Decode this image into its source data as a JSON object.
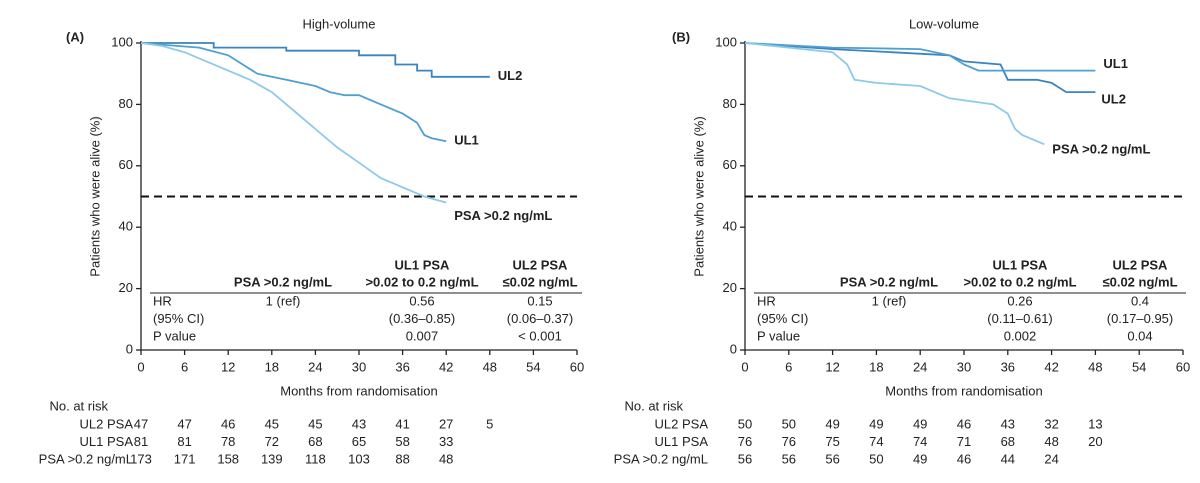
{
  "chart_data": [
    {
      "type": "line",
      "panel_label": "(A)",
      "title": "High-volume",
      "x_label": "Months from randomisation",
      "y_label": "Patients who were alive (%)",
      "xlim": [
        0,
        60
      ],
      "xticks": [
        0,
        6,
        12,
        18,
        24,
        30,
        36,
        42,
        48,
        54,
        60
      ],
      "ylim": [
        0,
        100
      ],
      "yticks": [
        0,
        20,
        40,
        60,
        80,
        100
      ],
      "reference_line": 50,
      "series": [
        {
          "name": "UL2",
          "color": "#3a84bf",
          "x": [
            0,
            10,
            10,
            20,
            20,
            30,
            30,
            35,
            35,
            38,
            38,
            40,
            40,
            48
          ],
          "values": [
            100,
            100,
            98.5,
            98.5,
            97.5,
            97.5,
            96,
            96,
            93,
            93,
            91,
            91,
            89,
            89
          ]
        },
        {
          "name": "UL1",
          "color": "#4f9fd2",
          "x": [
            0,
            8,
            12,
            14,
            16,
            18,
            20,
            24,
            26,
            28,
            30,
            33,
            36,
            38,
            39,
            40,
            42
          ],
          "values": [
            100,
            98.5,
            96,
            93,
            90,
            89,
            88,
            86,
            84,
            83,
            83,
            80,
            77,
            74,
            70,
            69,
            68
          ]
        },
        {
          "name": "PSA >0.2 ng/mL",
          "color": "#8ecae8",
          "x": [
            0,
            3,
            6,
            9,
            12,
            15,
            18,
            21,
            24,
            27,
            30,
            33,
            36,
            39,
            42
          ],
          "values": [
            100,
            99,
            97,
            94,
            91,
            88,
            84,
            78,
            72,
            66,
            61,
            56,
            53,
            50,
            48
          ]
        }
      ],
      "hr_table": {
        "headers": [
          [
            "PSA >0.2 ng/mL"
          ],
          [
            "UL1 PSA",
            ">0.02 to 0.2 ng/mL"
          ],
          [
            "UL2 PSA",
            "≤0.02 ng/mL"
          ]
        ],
        "row_labels": [
          "HR",
          "(95% CI)",
          "P value"
        ],
        "columns": [
          [
            "1 (ref)"
          ],
          [
            "0.56",
            "(0.36–0.85)",
            "0.007"
          ],
          [
            "0.15",
            "(0.06–0.37)",
            "< 0.001"
          ]
        ]
      },
      "risk_table": {
        "title": "No. at risk",
        "rows": [
          {
            "name": "UL2 PSA",
            "counts": [
              47,
              47,
              46,
              45,
              45,
              43,
              41,
              27,
              5
            ]
          },
          {
            "name": "UL1 PSA",
            "counts": [
              81,
              81,
              78,
              72,
              68,
              65,
              58,
              33
            ]
          },
          {
            "name": "PSA >0.2 ng/mL",
            "counts": [
              173,
              171,
              158,
              139,
              118,
              103,
              88,
              48
            ]
          }
        ]
      }
    },
    {
      "type": "line",
      "panel_label": "(B)",
      "title": "Low-volume",
      "x_label": "Months from randomisation",
      "y_label": "Patients who were alive (%)",
      "xlim": [
        0,
        60
      ],
      "xticks": [
        0,
        6,
        12,
        18,
        24,
        30,
        36,
        42,
        48,
        54,
        60
      ],
      "ylim": [
        0,
        100
      ],
      "yticks": [
        0,
        20,
        40,
        60,
        80,
        100
      ],
      "reference_line": 50,
      "series": [
        {
          "name": "UL2",
          "color": "#3a84bf",
          "x": [
            0,
            12,
            20,
            28,
            30,
            35,
            36,
            40,
            42,
            44,
            48
          ],
          "values": [
            100,
            98,
            97,
            96,
            94,
            93,
            88,
            88,
            87,
            84,
            84
          ]
        },
        {
          "name": "UL1",
          "color": "#4f9fd2",
          "x": [
            0,
            12,
            24,
            28,
            30,
            32,
            48
          ],
          "values": [
            100,
            98.5,
            98,
            96,
            93,
            91,
            91
          ]
        },
        {
          "name": "PSA >0.2 ng/mL",
          "color": "#8ecae8",
          "x": [
            0,
            12,
            14,
            15,
            18,
            24,
            28,
            34,
            36,
            37,
            38,
            41
          ],
          "values": [
            100,
            97,
            93,
            88,
            87,
            86,
            82,
            80,
            77,
            72,
            70,
            67
          ]
        }
      ],
      "hr_table": {
        "headers": [
          [
            "PSA >0.2 ng/mL"
          ],
          [
            "UL1 PSA",
            ">0.02 to 0.2 ng/mL"
          ],
          [
            "UL2 PSA",
            "≤0.02 ng/mL"
          ]
        ],
        "row_labels": [
          "HR",
          "(95% CI)",
          "P value"
        ],
        "columns": [
          [
            "1 (ref)"
          ],
          [
            "0.26",
            "(0.11–0.61)",
            "0.002"
          ],
          [
            "0.4",
            "(0.17–0.95)",
            "0.04"
          ]
        ]
      },
      "risk_table": {
        "title": "No. at risk",
        "rows": [
          {
            "name": "UL2 PSA",
            "counts": [
              50,
              50,
              49,
              49,
              49,
              46,
              43,
              32,
              13
            ]
          },
          {
            "name": "UL1 PSA",
            "counts": [
              76,
              76,
              75,
              74,
              74,
              71,
              68,
              48,
              20
            ]
          },
          {
            "name": "PSA >0.2 ng/mL",
            "counts": [
              56,
              56,
              56,
              50,
              49,
              46,
              44,
              24
            ]
          }
        ]
      }
    }
  ]
}
